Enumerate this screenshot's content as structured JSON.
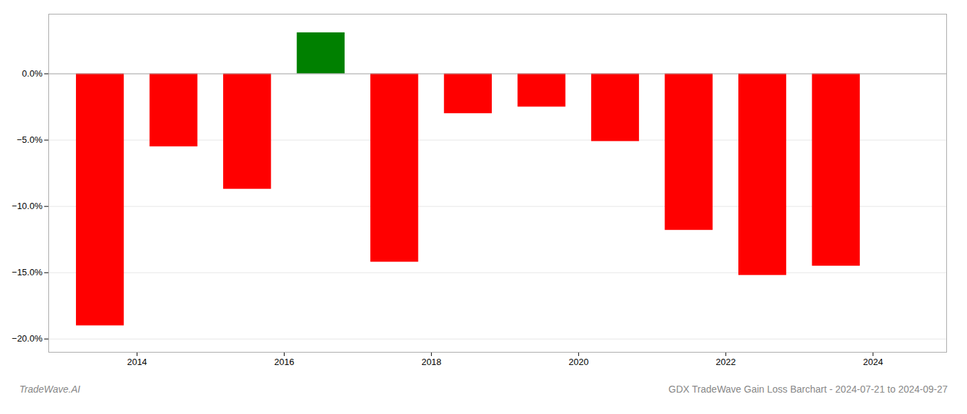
{
  "chart_data": {
    "type": "bar",
    "title": "GDX TradeWave Gain Loss Barchart - 2024-07-21 to 2024-09-27",
    "annotations": [
      "TradeWave.AI"
    ],
    "x": [
      2013.5,
      2014.5,
      2015.5,
      2016.5,
      2017.5,
      2018.5,
      2019.5,
      2020.5,
      2021.5,
      2022.5,
      2023.5
    ],
    "values": [
      -19.0,
      -5.5,
      -8.7,
      3.1,
      -14.2,
      -3.0,
      -2.5,
      -5.1,
      -11.8,
      -15.2,
      -14.5
    ],
    "colors": [
      "#ff0000",
      "#ff0000",
      "#ff0000",
      "#008000",
      "#ff0000",
      "#ff0000",
      "#ff0000",
      "#ff0000",
      "#ff0000",
      "#ff0000",
      "#ff0000"
    ],
    "xlim": [
      2012.8,
      2025.0
    ],
    "xticks": [
      2014,
      2016,
      2018,
      2020,
      2022,
      2024
    ],
    "ylim": [
      -21,
      4.5
    ],
    "yticks": [
      {
        "value": 0,
        "label": "0.0%"
      },
      {
        "value": -5,
        "label": "−5.0%"
      },
      {
        "value": -10,
        "label": "−10.0%"
      },
      {
        "value": -15,
        "label": "−15.0%"
      },
      {
        "value": -20,
        "label": "−20.0%"
      }
    ],
    "grid": true
  }
}
